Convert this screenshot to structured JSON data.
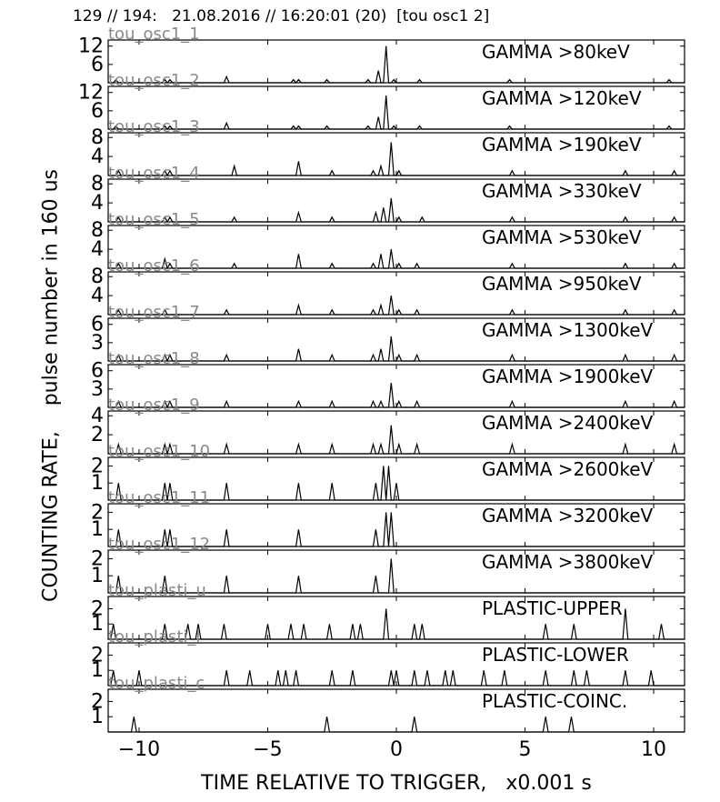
{
  "header": "129 // 194:   21.08.2016 // 16:20:01 (20)  [tou osc1 2]",
  "chart_data": {
    "type": "line",
    "ylabel": "COUNTING RATE,    pulse number in 160 us",
    "xlabel": "TIME RELATIVE TO TRIGGER,   x0.001 s",
    "xlim": [
      -11.2,
      11.2
    ],
    "x_ticks": [
      -10,
      -5,
      0,
      5,
      10
    ],
    "x_tick_labels": [
      "−10",
      "−5",
      "0",
      "5",
      "10"
    ],
    "panels": [
      {
        "tag": "tou_osc1_1",
        "label": "GAMMA >80keV",
        "ymax": 14,
        "yticks": [
          6,
          12
        ],
        "peaks": [
          [
            -10.9,
            1
          ],
          [
            -9.0,
            1
          ],
          [
            -8.8,
            1
          ],
          [
            -6.6,
            2
          ],
          [
            -4,
            1
          ],
          [
            -3.8,
            1
          ],
          [
            -2.7,
            1
          ],
          [
            -1.1,
            1
          ],
          [
            -0.7,
            4
          ],
          [
            -0.4,
            12
          ],
          [
            -0.1,
            1
          ],
          [
            0.9,
            1
          ],
          [
            4.4,
            1
          ],
          [
            10.6,
            1
          ]
        ]
      },
      {
        "tag": "tou_osc1_2",
        "label": "GAMMA >120keV",
        "ymax": 14,
        "yticks": [
          6,
          12
        ],
        "peaks": [
          [
            -10.9,
            1
          ],
          [
            -9.0,
            1
          ],
          [
            -8.8,
            1
          ],
          [
            -6.6,
            2
          ],
          [
            -4,
            1
          ],
          [
            -3.8,
            1
          ],
          [
            -2.7,
            1
          ],
          [
            -1.1,
            1
          ],
          [
            -0.7,
            4
          ],
          [
            -0.4,
            11
          ],
          [
            -0.1,
            1
          ],
          [
            0.9,
            1
          ],
          [
            4.4,
            1
          ],
          [
            10.6,
            1
          ]
        ]
      },
      {
        "tag": "tou_osc1_3",
        "label": "GAMMA >190keV",
        "ymax": 9,
        "yticks": [
          4,
          8
        ],
        "peaks": [
          [
            -10.8,
            1
          ],
          [
            -9.0,
            1
          ],
          [
            -8.8,
            1
          ],
          [
            -6.3,
            2
          ],
          [
            -3.8,
            3
          ],
          [
            -2.5,
            1
          ],
          [
            -0.9,
            1
          ],
          [
            -0.6,
            2
          ],
          [
            -0.2,
            7
          ],
          [
            0.1,
            1
          ],
          [
            4.5,
            1
          ],
          [
            8.9,
            1
          ],
          [
            10.8,
            1
          ]
        ]
      },
      {
        "tag": "tou_osc1_4",
        "label": "GAMMA >330keV",
        "ymax": 9,
        "yticks": [
          4,
          8
        ],
        "peaks": [
          [
            -10.8,
            1
          ],
          [
            -9.0,
            1
          ],
          [
            -8.8,
            1
          ],
          [
            -6.3,
            1
          ],
          [
            -3.8,
            2
          ],
          [
            -2.5,
            1
          ],
          [
            -0.8,
            2
          ],
          [
            -0.5,
            3
          ],
          [
            -0.2,
            5
          ],
          [
            0.1,
            1
          ],
          [
            1.0,
            1
          ],
          [
            4.5,
            1
          ],
          [
            8.9,
            1
          ],
          [
            10.8,
            1
          ]
        ]
      },
      {
        "tag": "tou_osc1_5",
        "label": "GAMMA >530keV",
        "ymax": 9,
        "yticks": [
          4,
          8
        ],
        "peaks": [
          [
            -10.8,
            1
          ],
          [
            -9.0,
            2
          ],
          [
            -8.8,
            1
          ],
          [
            -6.3,
            1
          ],
          [
            -3.8,
            3
          ],
          [
            -2.5,
            1
          ],
          [
            -0.9,
            1
          ],
          [
            -0.6,
            3
          ],
          [
            -0.2,
            4
          ],
          [
            0.1,
            1
          ],
          [
            0.8,
            1
          ],
          [
            4.5,
            1
          ],
          [
            8.9,
            1
          ],
          [
            10.8,
            1
          ]
        ]
      },
      {
        "tag": "tou_osc1_6",
        "label": "GAMMA >950keV",
        "ymax": 9,
        "yticks": [
          4,
          8
        ],
        "peaks": [
          [
            -10.8,
            1
          ],
          [
            -9.0,
            1
          ],
          [
            -6.6,
            1
          ],
          [
            -3.8,
            2
          ],
          [
            -2.5,
            1
          ],
          [
            -0.9,
            1
          ],
          [
            -0.6,
            2
          ],
          [
            -0.2,
            4
          ],
          [
            0.1,
            1
          ],
          [
            0.8,
            1
          ],
          [
            4.5,
            1
          ],
          [
            8.9,
            1
          ],
          [
            10.8,
            1
          ]
        ]
      },
      {
        "tag": "tou_osc1_7",
        "label": "GAMMA >1300keV",
        "ymax": 7,
        "yticks": [
          3,
          6
        ],
        "peaks": [
          [
            -10.8,
            1
          ],
          [
            -9.0,
            1
          ],
          [
            -8.8,
            1
          ],
          [
            -6.6,
            1
          ],
          [
            -3.8,
            2
          ],
          [
            -2.5,
            1
          ],
          [
            -0.9,
            1
          ],
          [
            -0.6,
            2
          ],
          [
            -0.2,
            4
          ],
          [
            0.1,
            1
          ],
          [
            0.8,
            1
          ],
          [
            4.5,
            1
          ],
          [
            8.9,
            1
          ],
          [
            10.8,
            1
          ]
        ]
      },
      {
        "tag": "tou_osc1_8",
        "label": "GAMMA >1900keV",
        "ymax": 7,
        "yticks": [
          3,
          6
        ],
        "peaks": [
          [
            -10.8,
            1
          ],
          [
            -9.0,
            1
          ],
          [
            -8.8,
            1
          ],
          [
            -6.6,
            1
          ],
          [
            -3.8,
            1
          ],
          [
            -2.5,
            1
          ],
          [
            -0.9,
            1
          ],
          [
            -0.6,
            1
          ],
          [
            -0.2,
            4
          ],
          [
            0.1,
            1
          ],
          [
            0.8,
            1
          ],
          [
            4.5,
            1
          ],
          [
            8.9,
            1
          ],
          [
            10.8,
            1
          ]
        ]
      },
      {
        "tag": "tou_osc1_9",
        "label": "GAMMA >2400keV",
        "ymax": 4.5,
        "yticks": [
          2,
          4
        ],
        "peaks": [
          [
            -10.8,
            1
          ],
          [
            -9.0,
            1
          ],
          [
            -8.8,
            1
          ],
          [
            -6.6,
            1
          ],
          [
            -3.8,
            1
          ],
          [
            -2.5,
            1
          ],
          [
            -0.9,
            1
          ],
          [
            -0.6,
            1
          ],
          [
            -0.2,
            3
          ],
          [
            0.1,
            1
          ],
          [
            0.8,
            1
          ],
          [
            4.5,
            1
          ],
          [
            8.9,
            1
          ],
          [
            10.8,
            1
          ]
        ]
      },
      {
        "tag": "tou_osc1_10",
        "label": "GAMMA >2600keV",
        "ymax": 2.5,
        "yticks": [
          1,
          2
        ],
        "peaks": [
          [
            -10.8,
            1
          ],
          [
            -9.0,
            1
          ],
          [
            -8.8,
            1
          ],
          [
            -6.6,
            1
          ],
          [
            -3.8,
            1
          ],
          [
            -2.5,
            1
          ],
          [
            -0.8,
            1
          ],
          [
            -0.5,
            2
          ],
          [
            -0.3,
            2
          ],
          [
            0.0,
            1
          ]
        ]
      },
      {
        "tag": "tou_osc1_11",
        "label": "GAMMA >3200keV",
        "ymax": 2.5,
        "yticks": [
          1,
          2
        ],
        "peaks": [
          [
            -10.8,
            1
          ],
          [
            -9.0,
            1
          ],
          [
            -8.8,
            1
          ],
          [
            -6.6,
            1
          ],
          [
            -3.8,
            1
          ],
          [
            -0.8,
            1
          ],
          [
            -0.4,
            2
          ],
          [
            -0.2,
            2
          ]
        ]
      },
      {
        "tag": "tou_osc1_12",
        "label": "GAMMA >3800keV",
        "ymax": 2.5,
        "yticks": [
          1,
          2
        ],
        "peaks": [
          [
            -10.8,
            1
          ],
          [
            -9.0,
            1
          ],
          [
            -6.6,
            1
          ],
          [
            -3.8,
            1
          ],
          [
            -0.8,
            1
          ],
          [
            -0.2,
            2
          ]
        ]
      },
      {
        "tag": "tou_plasti_u",
        "label": "PLASTIC-UPPER",
        "ymax": 2.8,
        "yticks": [
          1,
          2
        ],
        "peaks": [
          [
            -11,
            1
          ],
          [
            -9.0,
            1
          ],
          [
            -8.1,
            1
          ],
          [
            -7.7,
            1
          ],
          [
            -6.7,
            1
          ],
          [
            -5.0,
            1
          ],
          [
            -4.1,
            1
          ],
          [
            -3.6,
            1
          ],
          [
            -2.6,
            1
          ],
          [
            -1.7,
            1
          ],
          [
            -1.4,
            1
          ],
          [
            -0.4,
            2
          ],
          [
            0.7,
            1
          ],
          [
            1.0,
            1
          ],
          [
            5.8,
            1
          ],
          [
            6.9,
            1
          ],
          [
            8.9,
            2
          ],
          [
            10.3,
            1
          ]
        ]
      },
      {
        "tag": "tou_plasti_l",
        "label": "PLASTIC-LOWER",
        "ymax": 2.8,
        "yticks": [
          1,
          2
        ],
        "peaks": [
          [
            -11,
            1
          ],
          [
            -10.0,
            1
          ],
          [
            -6.6,
            1
          ],
          [
            -5.7,
            1
          ],
          [
            -4.6,
            1
          ],
          [
            -4.3,
            1
          ],
          [
            -3.9,
            1
          ],
          [
            -2.5,
            1
          ],
          [
            -1.7,
            1
          ],
          [
            -0.2,
            1
          ],
          [
            0.0,
            1
          ],
          [
            0.7,
            1
          ],
          [
            1.2,
            1
          ],
          [
            1.9,
            1
          ],
          [
            2.2,
            1
          ],
          [
            3.4,
            1
          ],
          [
            4.2,
            1
          ],
          [
            5.8,
            1
          ],
          [
            6.9,
            1
          ],
          [
            7.4,
            1
          ],
          [
            8.9,
            1
          ],
          [
            9.9,
            1
          ]
        ]
      },
      {
        "tag": "tou_plasti_c",
        "label": "PLASTIC-COINC.",
        "ymax": 2.8,
        "yticks": [
          1,
          2
        ],
        "peaks": [
          [
            -10.2,
            1
          ],
          [
            -2.7,
            1
          ],
          [
            0.7,
            1
          ],
          [
            5.8,
            1
          ],
          [
            6.8,
            1
          ]
        ]
      }
    ]
  }
}
